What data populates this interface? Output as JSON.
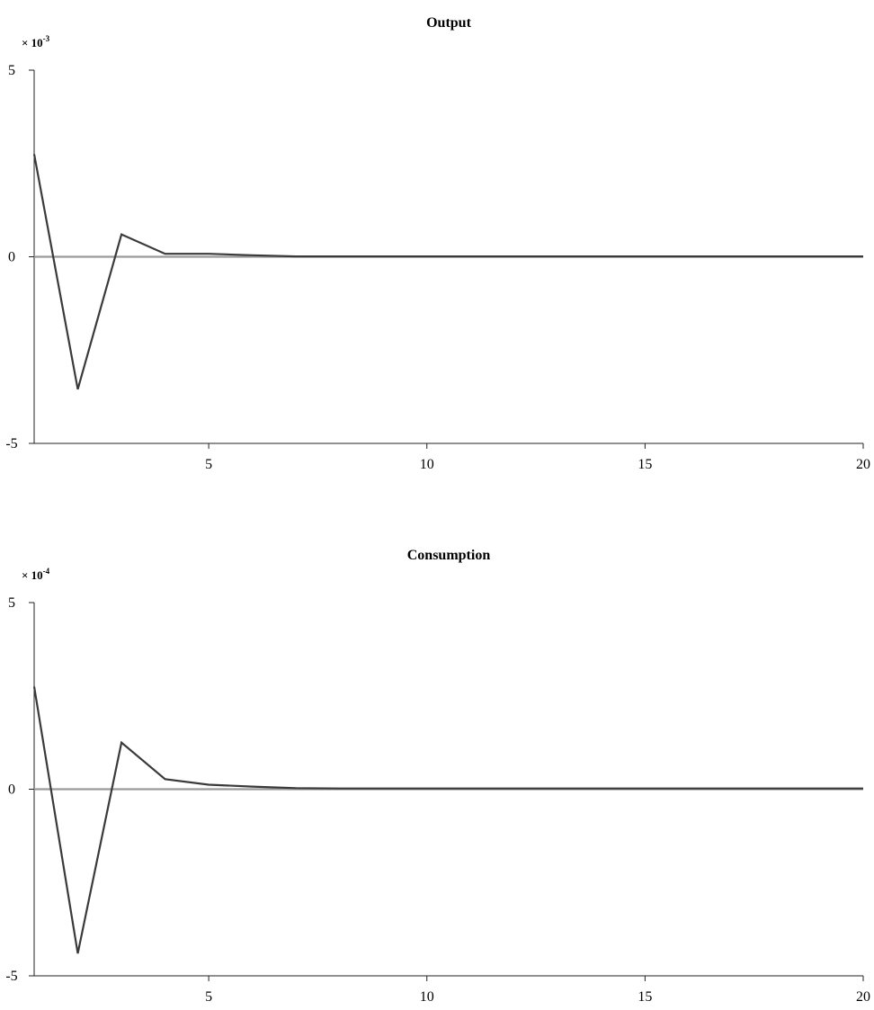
{
  "chart_data": [
    {
      "type": "line",
      "title": "Output",
      "y_multiplier": "× 10",
      "y_multiplier_exponent": "-3",
      "xlim": [
        1,
        20
      ],
      "ylim": [
        -5,
        5
      ],
      "x_ticks": [
        "5",
        "10",
        "15",
        "20"
      ],
      "y_ticks": [
        "5",
        "0",
        "-5"
      ],
      "zero_line": true,
      "series": [
        {
          "x": [
            1,
            2,
            3,
            4,
            5,
            6,
            7,
            8,
            9,
            10,
            11,
            12,
            13,
            14,
            15,
            16,
            17,
            18,
            19,
            20
          ],
          "values": [
            2.75,
            -3.55,
            0.6,
            0.08,
            0.08,
            0.04,
            0.01,
            0.01,
            0.01,
            0.01,
            0.01,
            0.01,
            0.01,
            0.01,
            0.01,
            0.01,
            0.01,
            0.01,
            0.01,
            0.01
          ]
        }
      ],
      "colors": {
        "series": "#3a3a3a",
        "zero_line": "#9a9a9a",
        "axis": "#222222"
      }
    },
    {
      "type": "line",
      "title": "Consumption",
      "y_multiplier": "× 10",
      "y_multiplier_exponent": "-4",
      "xlim": [
        1,
        20
      ],
      "ylim": [
        -5,
        5
      ],
      "x_ticks": [
        "5",
        "10",
        "15",
        "20"
      ],
      "y_ticks": [
        "5",
        "0",
        "-5"
      ],
      "zero_line": true,
      "series": [
        {
          "x": [
            1,
            2,
            3,
            4,
            5,
            6,
            7,
            8,
            9,
            10,
            11,
            12,
            13,
            14,
            15,
            16,
            17,
            18,
            19,
            20
          ],
          "values": [
            2.75,
            -4.4,
            1.25,
            0.27,
            0.12,
            0.07,
            0.03,
            0.02,
            0.02,
            0.02,
            0.02,
            0.02,
            0.02,
            0.02,
            0.02,
            0.02,
            0.02,
            0.02,
            0.02,
            0.02
          ]
        }
      ],
      "colors": {
        "series": "#3a3a3a",
        "zero_line": "#9a9a9a",
        "axis": "#222222"
      }
    }
  ]
}
